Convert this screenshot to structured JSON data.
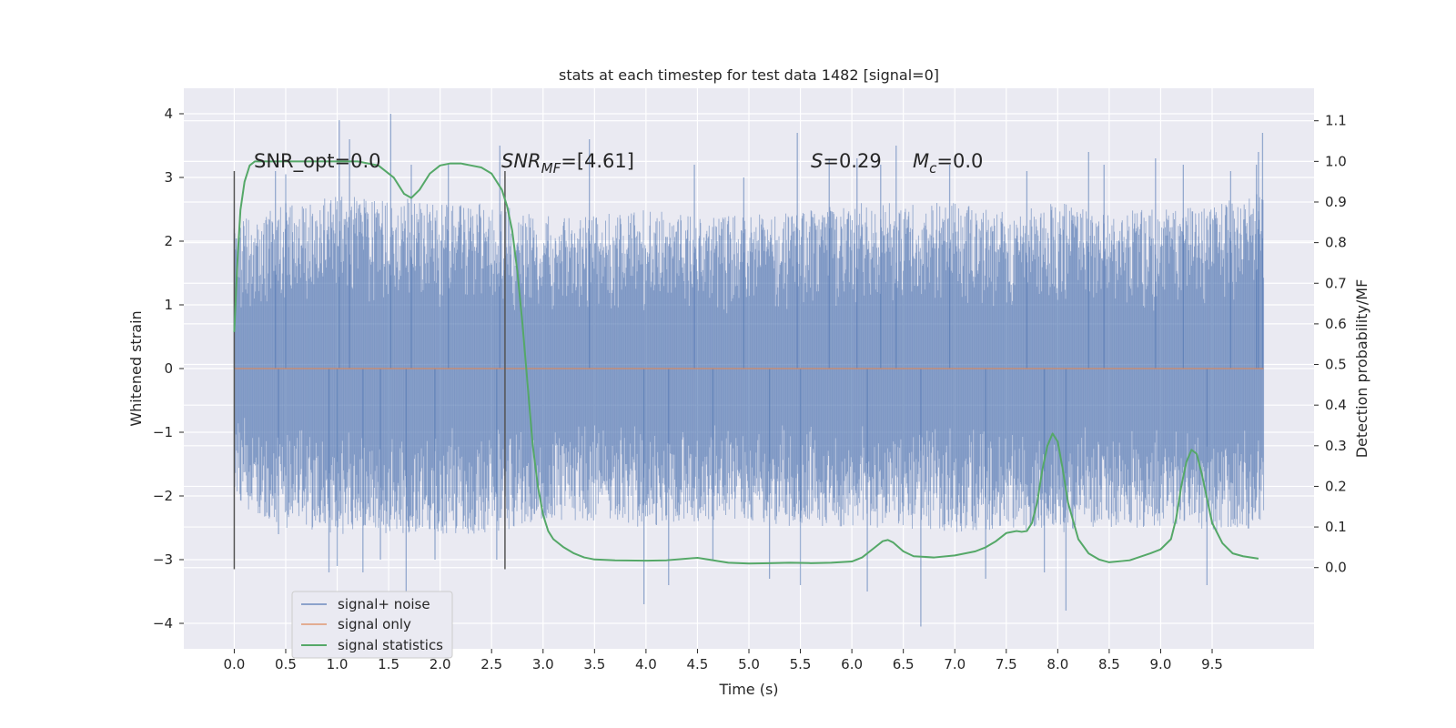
{
  "chart_data": {
    "type": "line",
    "title": "stats at each timestep for test data 1482 [signal=0]",
    "xlabel": "Time (s)",
    "ylabel_left": "Whitened strain",
    "ylabel_right": "Detection probability/MF",
    "xlim": [
      -0.49,
      10.49
    ],
    "ylim_left": [
      -4.4,
      4.4
    ],
    "ylim_right": [
      -0.2,
      1.18
    ],
    "x_ticks": [
      "0.0",
      "0.5",
      "1.0",
      "1.5",
      "2.0",
      "2.5",
      "3.0",
      "3.5",
      "4.0",
      "4.5",
      "5.0",
      "5.5",
      "6.0",
      "6.5",
      "7.0",
      "7.5",
      "8.0",
      "8.5",
      "9.0",
      "9.5"
    ],
    "y_ticks_left": [
      "4",
      "3",
      "2",
      "1",
      "0",
      "−1",
      "−2",
      "−3",
      "−4"
    ],
    "y_ticks_right": [
      "1.1",
      "1.0",
      "0.9",
      "0.8",
      "0.7",
      "0.6",
      "0.5",
      "0.4",
      "0.3",
      "0.2",
      "0.1",
      "0.0"
    ],
    "grid": true,
    "legend_position": "lower-left",
    "annotations": {
      "snr_opt": "SNR_opt=0.0",
      "snr_mf_base": "SNR",
      "snr_mf_sub": "MF",
      "snr_mf_value": "=[4.61]",
      "s_sym": "S",
      "s_value": "=0.29",
      "mc_base": "M",
      "mc_sub": "c",
      "mc_value": "=0.0"
    },
    "vertical_markers": [
      {
        "x": 0.0,
        "ymin": -3.15,
        "ymax": 3.1
      },
      {
        "x": 2.63,
        "ymin": -3.15,
        "ymax": 3.1
      }
    ],
    "series": [
      {
        "name": "signal+ noise",
        "axis": "left",
        "color": "#4c72b0",
        "envelope": {
          "x": [
            0.0,
            0.5,
            1.0,
            1.5,
            2.0,
            2.5,
            3.0,
            3.5,
            4.0,
            4.5,
            5.0,
            5.5,
            6.0,
            6.5,
            7.0,
            7.5,
            8.0,
            8.5,
            9.0,
            9.5,
            10.0
          ],
          "typical_upper": [
            2.3,
            2.6,
            2.7,
            2.7,
            2.6,
            2.6,
            2.4,
            2.4,
            2.5,
            2.4,
            2.4,
            2.5,
            2.6,
            2.6,
            2.6,
            2.5,
            2.6,
            2.5,
            2.5,
            2.6,
            2.8
          ],
          "typical_lower": [
            -2.1,
            -2.5,
            -2.6,
            -2.6,
            -2.6,
            -2.6,
            -2.4,
            -2.4,
            -2.5,
            -2.4,
            -2.4,
            -2.5,
            -2.5,
            -2.5,
            -2.6,
            -2.5,
            -2.6,
            -2.5,
            -2.5,
            -2.6,
            -2.5
          ]
        },
        "spikes": [
          {
            "x": 0.0,
            "y": 2.2
          },
          {
            "x": 0.4,
            "y": 3.1
          },
          {
            "x": 0.43,
            "y": -2.6
          },
          {
            "x": 0.5,
            "y": 3.05
          },
          {
            "x": 0.92,
            "y": -3.2
          },
          {
            "x": 1.0,
            "y": -3.1
          },
          {
            "x": 1.02,
            "y": 3.9
          },
          {
            "x": 1.12,
            "y": 3.6
          },
          {
            "x": 1.25,
            "y": -3.2
          },
          {
            "x": 1.42,
            "y": -3.0
          },
          {
            "x": 1.52,
            "y": 4.0
          },
          {
            "x": 1.67,
            "y": -3.6
          },
          {
            "x": 1.72,
            "y": 3.2
          },
          {
            "x": 1.95,
            "y": -3.0
          },
          {
            "x": 2.08,
            "y": 3.2
          },
          {
            "x": 2.55,
            "y": -3.0
          },
          {
            "x": 2.58,
            "y": 3.5
          },
          {
            "x": 3.45,
            "y": 3.6
          },
          {
            "x": 3.98,
            "y": -3.7
          },
          {
            "x": 4.22,
            "y": -3.4
          },
          {
            "x": 4.47,
            "y": 3.2
          },
          {
            "x": 4.65,
            "y": -3.0
          },
          {
            "x": 4.95,
            "y": 3.0
          },
          {
            "x": 5.2,
            "y": -3.3
          },
          {
            "x": 5.47,
            "y": 3.7
          },
          {
            "x": 5.5,
            "y": -3.4
          },
          {
            "x": 5.78,
            "y": 3.3
          },
          {
            "x": 6.05,
            "y": 3.3
          },
          {
            "x": 6.15,
            "y": -3.5
          },
          {
            "x": 6.28,
            "y": 3.2
          },
          {
            "x": 6.43,
            "y": 3.5
          },
          {
            "x": 6.67,
            "y": -4.05
          },
          {
            "x": 6.95,
            "y": 3.2
          },
          {
            "x": 7.3,
            "y": -3.3
          },
          {
            "x": 7.7,
            "y": 3.1
          },
          {
            "x": 7.87,
            "y": -3.2
          },
          {
            "x": 8.08,
            "y": -3.8
          },
          {
            "x": 8.3,
            "y": 3.4
          },
          {
            "x": 8.45,
            "y": 3.2
          },
          {
            "x": 8.95,
            "y": 3.3
          },
          {
            "x": 9.22,
            "y": 3.2
          },
          {
            "x": 9.45,
            "y": -3.4
          },
          {
            "x": 9.68,
            "y": 3.1
          },
          {
            "x": 9.93,
            "y": 3.2
          },
          {
            "x": 9.95,
            "y": 3.4
          },
          {
            "x": 9.99,
            "y": 3.7
          }
        ]
      },
      {
        "name": "signal only",
        "axis": "left",
        "color": "#dd8452",
        "x": [
          0.0,
          10.0
        ],
        "y": [
          0.0,
          0.0
        ]
      },
      {
        "name": "signal statistics",
        "axis": "right",
        "color": "#55a868",
        "x": [
          0.0,
          0.03,
          0.06,
          0.1,
          0.15,
          0.2,
          0.3,
          0.5,
          0.8,
          1.0,
          1.2,
          1.4,
          1.55,
          1.65,
          1.72,
          1.8,
          1.9,
          2.0,
          2.1,
          2.2,
          2.3,
          2.4,
          2.5,
          2.6,
          2.65,
          2.7,
          2.75,
          2.8,
          2.85,
          2.9,
          2.95,
          3.0,
          3.05,
          3.1,
          3.2,
          3.3,
          3.4,
          3.5,
          3.7,
          4.0,
          4.2,
          4.4,
          4.5,
          4.6,
          4.8,
          5.0,
          5.2,
          5.4,
          5.6,
          5.8,
          6.0,
          6.1,
          6.2,
          6.3,
          6.35,
          6.4,
          6.5,
          6.6,
          6.8,
          7.0,
          7.2,
          7.3,
          7.4,
          7.5,
          7.6,
          7.65,
          7.7,
          7.75,
          7.8,
          7.85,
          7.9,
          7.95,
          8.0,
          8.05,
          8.1,
          8.2,
          8.3,
          8.4,
          8.5,
          8.7,
          8.9,
          9.0,
          9.1,
          9.15,
          9.2,
          9.25,
          9.3,
          9.35,
          9.4,
          9.45,
          9.5,
          9.6,
          9.7,
          9.8,
          9.95
        ],
        "y": [
          0.58,
          0.75,
          0.88,
          0.95,
          0.99,
          1.0,
          1.0,
          1.0,
          1.0,
          1.0,
          1.0,
          0.99,
          0.96,
          0.92,
          0.91,
          0.93,
          0.97,
          0.99,
          0.995,
          0.995,
          0.99,
          0.985,
          0.97,
          0.93,
          0.89,
          0.83,
          0.73,
          0.6,
          0.45,
          0.3,
          0.2,
          0.13,
          0.09,
          0.07,
          0.05,
          0.035,
          0.025,
          0.02,
          0.018,
          0.017,
          0.018,
          0.022,
          0.024,
          0.02,
          0.012,
          0.01,
          0.011,
          0.012,
          0.011,
          0.012,
          0.015,
          0.025,
          0.045,
          0.065,
          0.068,
          0.062,
          0.04,
          0.028,
          0.025,
          0.03,
          0.04,
          0.05,
          0.065,
          0.085,
          0.09,
          0.088,
          0.09,
          0.11,
          0.16,
          0.24,
          0.3,
          0.33,
          0.31,
          0.24,
          0.16,
          0.07,
          0.035,
          0.02,
          0.013,
          0.018,
          0.035,
          0.045,
          0.07,
          0.12,
          0.2,
          0.26,
          0.29,
          0.28,
          0.23,
          0.17,
          0.11,
          0.06,
          0.035,
          0.028,
          0.022
        ]
      }
    ]
  }
}
